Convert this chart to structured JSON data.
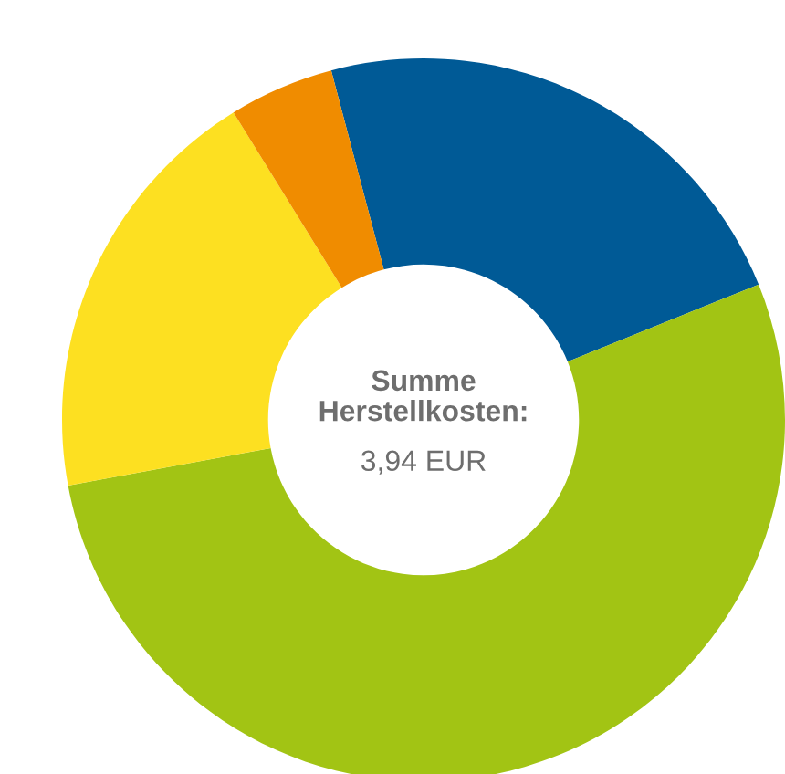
{
  "chart_data": {
    "type": "donut",
    "categories": [
      null,
      null,
      null,
      null
    ],
    "values": [
      23,
      53.2,
      19.1,
      4.7
    ],
    "colors": [
      "#005a96",
      "#a2c414",
      "#fde021",
      "#f08c00"
    ],
    "annotations": [
      "Summe\nHerstellkosten:",
      "3,94 EUR"
    ]
  }
}
